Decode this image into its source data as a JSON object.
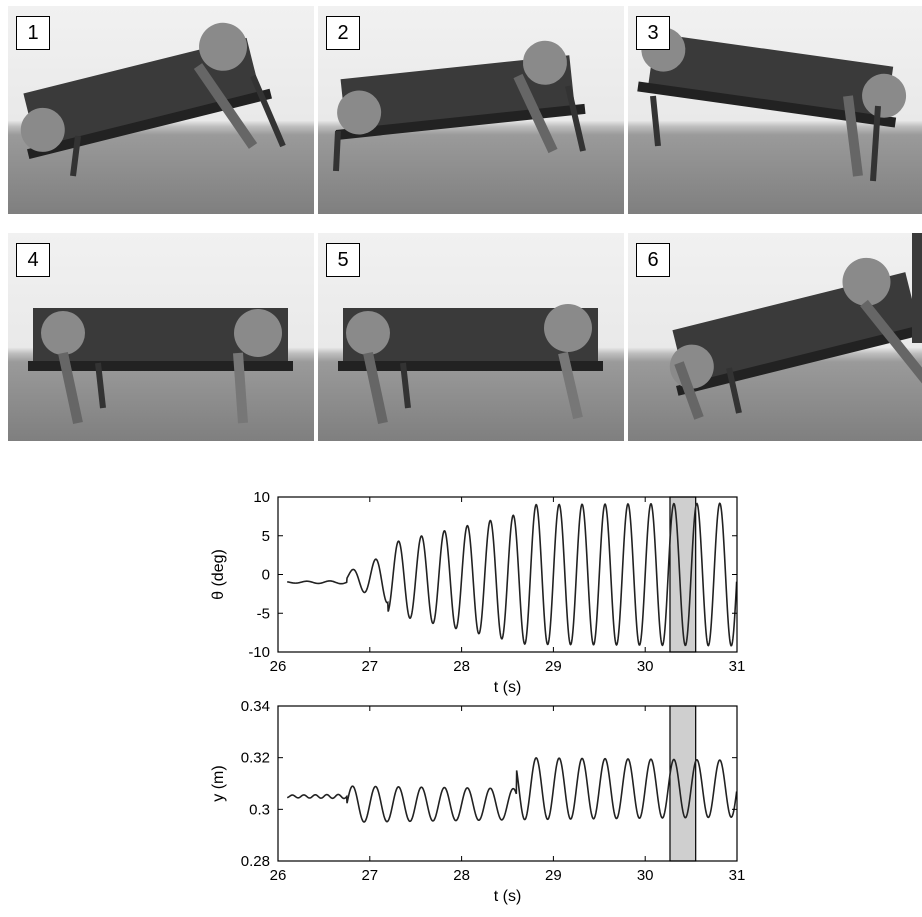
{
  "frames": [
    "1",
    "2",
    "3",
    "4",
    "5",
    "6"
  ],
  "chart_data": [
    {
      "type": "line",
      "xlabel": "t (s)",
      "ylabel": "θ (deg)",
      "xlim": [
        26,
        31
      ],
      "ylim": [
        -10,
        10
      ],
      "xticks": [
        "26",
        "27",
        "28",
        "29",
        "30",
        "31"
      ],
      "yticks": [
        "-10",
        "-5",
        "0",
        "5",
        "10"
      ],
      "highlight_interval": [
        30.27,
        30.55
      ],
      "series": [
        {
          "segments": [
            {
              "t0": 26.1,
              "t1": 26.75,
              "offset": -1.0,
              "amp_start": 0.1,
              "amp_end": 0.2,
              "freq": 4.0
            },
            {
              "t0": 26.75,
              "t1": 27.2,
              "offset": -0.5,
              "amp_start": 0.8,
              "amp_end": 3.2,
              "freq": 4.0
            },
            {
              "t0": 27.2,
              "t1": 28.7,
              "offset": -0.5,
              "amp_start": 4.5,
              "amp_end": 8.5,
              "freq": 4.0
            },
            {
              "t0": 28.7,
              "t1": 31.0,
              "offset": 0.0,
              "amp_start": 9.0,
              "amp_end": 9.2,
              "freq": 4.0
            }
          ]
        }
      ]
    },
    {
      "type": "line",
      "xlabel": "t (s)",
      "ylabel": "y (m)",
      "xlim": [
        26,
        31
      ],
      "ylim": [
        0.28,
        0.34
      ],
      "xticks": [
        "26",
        "27",
        "28",
        "29",
        "30",
        "31"
      ],
      "yticks": [
        "0.28",
        "0.3",
        "0.32",
        "0.34"
      ],
      "highlight_interval": [
        30.27,
        30.55
      ],
      "series": [
        {
          "segments": [
            {
              "t0": 26.1,
              "t1": 26.75,
              "offset": 0.305,
              "amp_start": 0.0005,
              "amp_end": 0.0008,
              "freq": 8.0
            },
            {
              "t0": 26.75,
              "t1": 28.6,
              "offset": 0.302,
              "amp_start": 0.007,
              "amp_end": 0.006,
              "freq": 4.0
            },
            {
              "t0": 28.6,
              "t1": 31.0,
              "offset": 0.308,
              "amp_start": 0.012,
              "amp_end": 0.011,
              "freq": 4.0
            }
          ]
        }
      ]
    }
  ]
}
